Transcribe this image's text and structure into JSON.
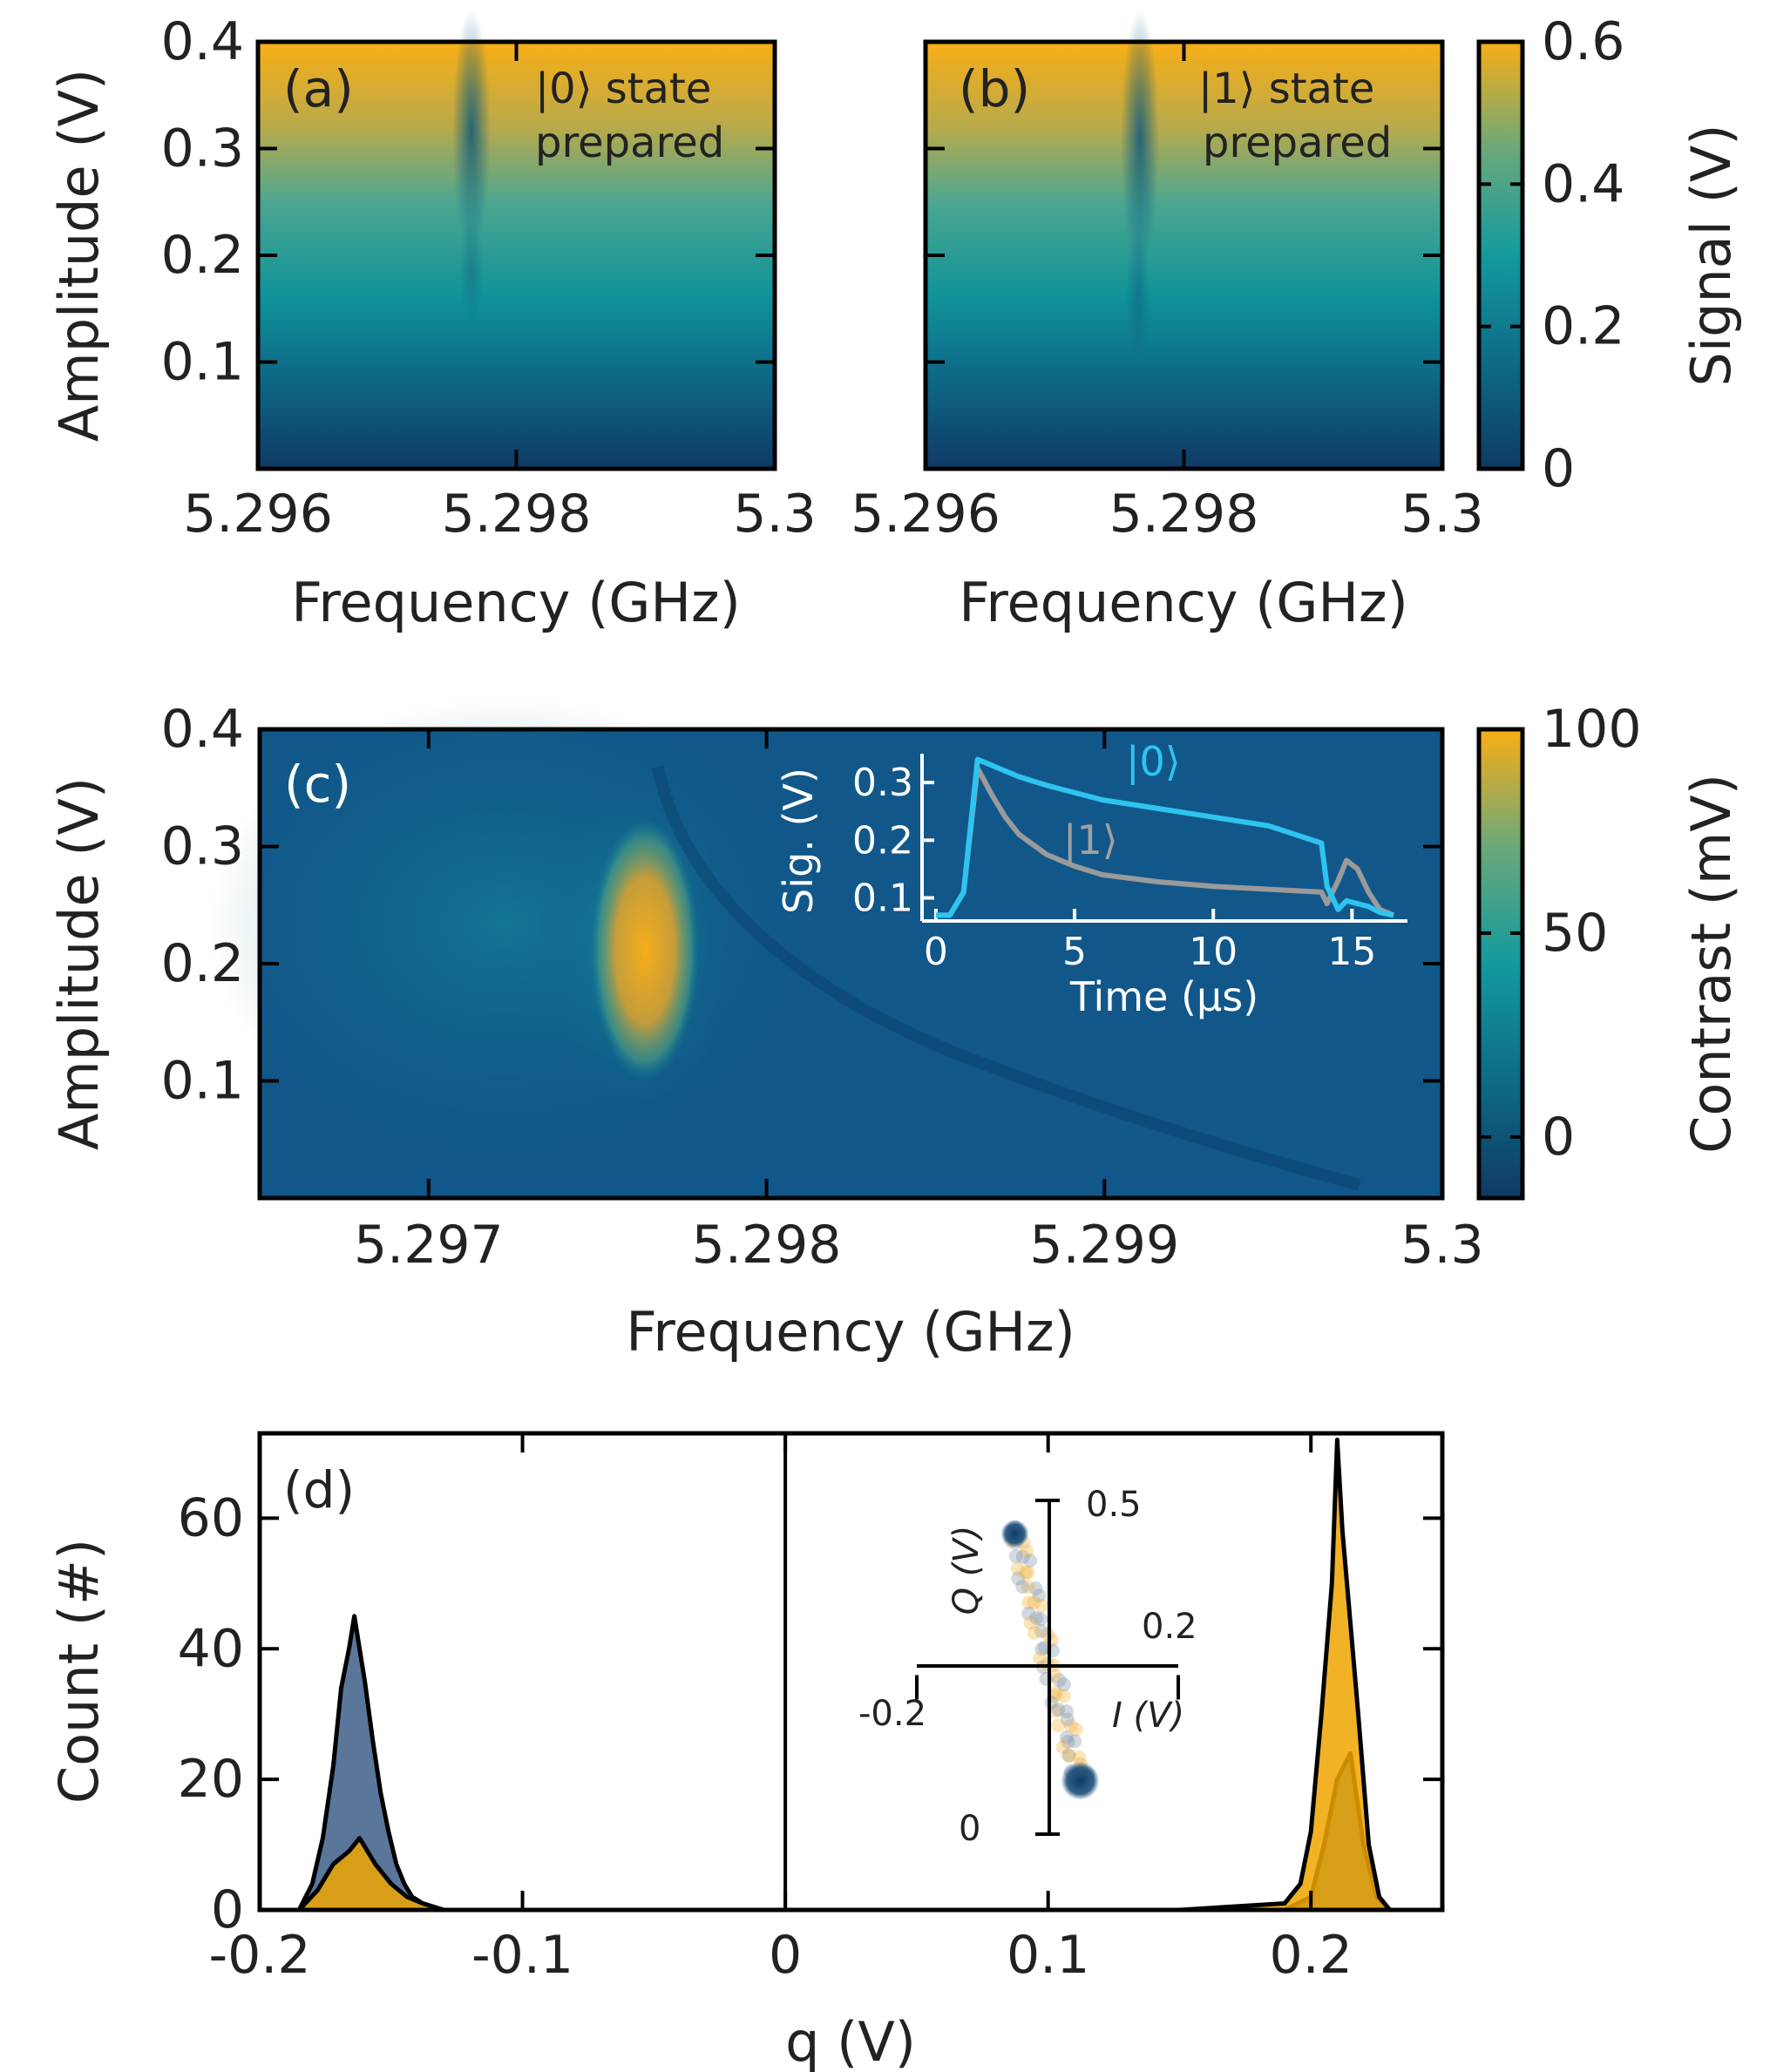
{
  "chart_data": [
    {
      "id": "a",
      "type": "heatmap",
      "panel_label": "(a)",
      "annotation": [
        "|0⟩ state",
        "prepared"
      ],
      "xlabel": "Frequency (GHz)",
      "ylabel": "Amplitude (V)",
      "xlim": [
        5.296,
        5.3
      ],
      "ylim": [
        0.0,
        0.4
      ],
      "xticks": [
        "5.296",
        "5.298",
        "5.3"
      ],
      "yticks": [
        "0.1",
        "0.2",
        "0.3",
        "0.4"
      ],
      "xtick_values": [
        5.296,
        5.298,
        5.3
      ],
      "ytick_values": [
        0.1,
        0.2,
        0.3,
        0.4
      ],
      "colorbar": "Signal (V)",
      "resonance_dip": {
        "frequency": 5.2976,
        "from_amplitude": 0.15,
        "to_amplitude": 0.4
      },
      "signal_vs_amplitude": {
        "amplitude": [
          0.0,
          0.1,
          0.2,
          0.3,
          0.4
        ],
        "signal": [
          0.03,
          0.18,
          0.3,
          0.47,
          0.6
        ]
      }
    },
    {
      "id": "b",
      "type": "heatmap",
      "panel_label": "(b)",
      "annotation": [
        "|1⟩ state",
        "prepared"
      ],
      "xlabel": "Frequency (GHz)",
      "ylabel": "",
      "xlim": [
        5.296,
        5.3
      ],
      "ylim": [
        0.0,
        0.4
      ],
      "xticks": [
        "5.296",
        "5.298",
        "5.3"
      ],
      "yticks": [],
      "xtick_values": [
        5.296,
        5.298,
        5.3
      ],
      "ytick_values": [
        0.1,
        0.2,
        0.3,
        0.4
      ],
      "colorbar": "Signal (V)",
      "resonance_dip": {
        "frequency": 5.2978,
        "from_amplitude": 0.1,
        "to_amplitude": 0.4
      },
      "signal_vs_amplitude": {
        "amplitude": [
          0.0,
          0.1,
          0.2,
          0.3,
          0.4
        ],
        "signal": [
          0.03,
          0.18,
          0.3,
          0.47,
          0.6
        ]
      }
    },
    {
      "id": "colorbar-signal",
      "type": "colorbar",
      "label": "Signal (V)",
      "range": [
        0.0,
        0.6
      ],
      "ticks": [
        "0",
        "0.2",
        "0.4",
        "0.6"
      ],
      "tick_values": [
        0.0,
        0.2,
        0.4,
        0.6
      ]
    },
    {
      "id": "c",
      "type": "heatmap",
      "panel_label": "(c)",
      "xlabel": "Frequency (GHz)",
      "ylabel": "Amplitude (V)",
      "xlim": [
        5.2965,
        5.3
      ],
      "ylim": [
        0.0,
        0.4
      ],
      "xticks": [
        "5.297",
        "5.298",
        "5.299",
        "5.3"
      ],
      "yticks": [
        "0.1",
        "0.2",
        "0.3",
        "0.4"
      ],
      "xtick_values": [
        5.297,
        5.298,
        5.299,
        5.3
      ],
      "ytick_values": [
        0.1,
        0.2,
        0.3,
        0.4
      ],
      "colorbar": "Contrast (mV)",
      "contrast_peak": {
        "frequency": [
          5.2974,
          5.2978
        ],
        "amplitude": [
          0.1,
          0.33
        ],
        "contrast": 100
      }
    },
    {
      "id": "colorbar-contrast",
      "type": "colorbar",
      "label": "Contrast (mV)",
      "range": [
        -15,
        100
      ],
      "ticks": [
        "0",
        "50",
        "100"
      ],
      "tick_values": [
        0,
        50,
        100
      ]
    },
    {
      "id": "c-inset",
      "type": "line",
      "xlabel": "Time (μs)",
      "ylabel": "Sig. (V)",
      "xlim": [
        -0.5,
        17
      ],
      "ylim": [
        0.06,
        0.35
      ],
      "xticks": [
        "0",
        "5",
        "10",
        "15"
      ],
      "yticks": [
        "0.1",
        "0.2",
        "0.3"
      ],
      "xtick_values": [
        0,
        5,
        10,
        15
      ],
      "ytick_values": [
        0.1,
        0.2,
        0.3
      ],
      "series": [
        {
          "name": "|0⟩",
          "color": "#2ec4f0",
          "x": [
            0.0,
            0.5,
            1.0,
            1.5,
            2,
            3,
            4,
            6,
            8,
            10,
            12,
            13.9,
            14.1,
            14.5,
            14.8,
            15.2,
            15.6,
            16.0,
            16.5
          ],
          "y": [
            0.07,
            0.07,
            0.11,
            0.34,
            0.33,
            0.31,
            0.295,
            0.27,
            0.255,
            0.24,
            0.225,
            0.195,
            0.12,
            0.08,
            0.095,
            0.09,
            0.085,
            0.075,
            0.07
          ]
        },
        {
          "name": "|1⟩",
          "color": "#9a9a9a",
          "x": [
            0.0,
            0.5,
            1.0,
            1.5,
            2,
            2.5,
            3,
            4,
            5,
            6,
            8,
            10,
            12,
            13.9,
            14.1,
            14.5,
            14.8,
            15.2,
            15.6,
            16.0,
            16.5
          ],
          "y": [
            0.07,
            0.07,
            0.11,
            0.325,
            0.28,
            0.24,
            0.21,
            0.175,
            0.155,
            0.14,
            0.128,
            0.12,
            0.115,
            0.11,
            0.09,
            0.13,
            0.165,
            0.15,
            0.11,
            0.08,
            0.07
          ]
        }
      ]
    },
    {
      "id": "d",
      "type": "area",
      "panel_label": "(d)",
      "xlabel": "q (V)",
      "ylabel": "Count (#)",
      "xlim": [
        -0.2,
        0.25
      ],
      "ylim": [
        0,
        73
      ],
      "xticks": [
        "-0.2",
        "-0.1",
        "0",
        "0.1",
        "0.2"
      ],
      "yticks": [
        "0",
        "20",
        "40",
        "60"
      ],
      "xtick_values": [
        -0.2,
        -0.1,
        0,
        0.1,
        0.2
      ],
      "ytick_values": [
        0,
        20,
        40,
        60
      ],
      "threshold": 0,
      "series": [
        {
          "color": "#3d5f8a",
          "x": [
            -0.185,
            -0.18,
            -0.176,
            -0.172,
            -0.169,
            -0.166,
            -0.164,
            -0.162,
            -0.16,
            -0.157,
            -0.154,
            -0.151,
            -0.148,
            -0.145,
            -0.142,
            -0.138,
            -0.13,
            -0.1,
            -0.05,
            0,
            0.05,
            0.1,
            0.15,
            0.19,
            0.2,
            0.205,
            0.21,
            0.215,
            0.22,
            0.225,
            0.23
          ],
          "y": [
            0,
            4,
            11,
            22,
            34,
            40,
            45,
            40,
            35,
            26,
            18,
            12,
            7,
            4,
            2,
            1,
            0,
            0,
            0,
            0,
            0,
            0,
            0,
            0,
            2,
            10,
            20,
            24,
            10,
            2,
            0
          ]
        },
        {
          "color": "#f0a500",
          "x": [
            -0.185,
            -0.178,
            -0.172,
            -0.166,
            -0.162,
            -0.156,
            -0.15,
            -0.144,
            -0.138,
            -0.13,
            -0.1,
            -0.05,
            0,
            0.05,
            0.1,
            0.15,
            0.19,
            0.196,
            0.2,
            0.204,
            0.208,
            0.21,
            0.212,
            0.215,
            0.218,
            0.222,
            0.226,
            0.23
          ],
          "y": [
            0,
            3,
            7,
            9,
            11,
            7,
            4,
            2,
            1,
            0,
            0,
            0,
            0,
            0,
            0,
            0,
            1,
            4,
            12,
            30,
            50,
            72,
            58,
            44,
            30,
            10,
            2,
            0
          ]
        }
      ]
    },
    {
      "id": "d-inset",
      "type": "scatter",
      "xlabel": "I (V)",
      "ylabel": "Q (V)",
      "xlim": [
        -0.2,
        0.2
      ],
      "ylim": [
        0.0,
        0.5
      ],
      "x_tick_labels": [
        "-0.2",
        "0.2"
      ],
      "y_tick_labels": [
        "0",
        "0.5"
      ],
      "clusters": [
        {
          "I": -0.05,
          "Q": 0.45,
          "color": "#1d4f7c"
        },
        {
          "I": 0.05,
          "Q": 0.08,
          "color": "#1d4f7c"
        }
      ]
    }
  ]
}
